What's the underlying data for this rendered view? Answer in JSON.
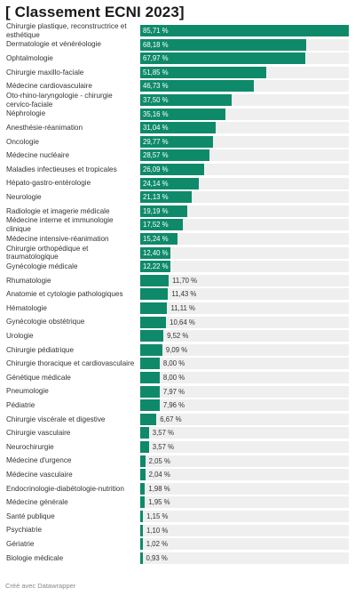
{
  "header": {
    "title": "[ Classement ECNI 2023]"
  },
  "footer": {
    "credit": "Créé avec Datawrapper"
  },
  "colors": {
    "bar": "#0e8a6a",
    "track": "#efefef"
  },
  "chart_data": {
    "type": "bar",
    "orientation": "horizontal",
    "title": "[ Classement ECNI 2023]",
    "xlim": [
      0,
      85.71
    ],
    "grid": false,
    "categories": [
      "Chirurgie plastique, reconstructrice et esthétique",
      "Dermatologie et vénéréologie",
      "Ophtalmologie",
      "Chirurgie maxillo-faciale",
      "Médecine cardiovasculaire",
      "Oto-rhino-laryngologie - chirurgie cervico-faciale",
      "Néphrologie",
      "Anesthésie-réanimation",
      "Oncologie",
      "Médecine nucléaire",
      "Maladies infectieuses et tropicales",
      "Hépato-gastro-entérologie",
      "Neurologie",
      "Radiologie et imagerie médicale",
      "Médecine interne et immunologie clinique",
      "Médecine intensive-réanimation",
      "Chirurgie orthopédique et traumatologique",
      "Gynécologie médicale",
      "Rhumatologie",
      "Anatomie et cytologie pathologiques",
      "Hématologie",
      "Gynécologie obstétrique",
      "Urologie",
      "Chirurgie pédiatrique",
      "Chirurgie thoracique et cardiovasculaire",
      "Génétique médicale",
      "Pneumologie",
      "Pédiatrie",
      "Chirurgie viscérale et digestive",
      "Chirurgie vasculaire",
      "Neurochirurgie",
      "Médecine d'urgence",
      "Médecine vasculaire",
      "Endocrinologie-diabétologie-nutrition",
      "Médecine générale",
      "Santé publique",
      "Psychiatrie",
      "Gériatrie",
      "Biologie médicale"
    ],
    "values": [
      85.71,
      68.18,
      67.97,
      51.85,
      46.73,
      37.5,
      35.16,
      31.04,
      29.77,
      28.57,
      26.09,
      24.14,
      21.13,
      19.19,
      17.52,
      15.24,
      12.4,
      12.22,
      11.7,
      11.43,
      11.11,
      10.64,
      9.52,
      9.09,
      8.0,
      8.0,
      7.97,
      7.96,
      6.67,
      3.57,
      3.57,
      2.05,
      2.04,
      1.98,
      1.95,
      1.15,
      1.1,
      1.02,
      0.93
    ],
    "value_labels": [
      "85,71 %",
      "68,18 %",
      "67,97 %",
      "51,85 %",
      "46,73 %",
      "37,50 %",
      "35,16 %",
      "31,04 %",
      "29,77 %",
      "28,57 %",
      "26,09 %",
      "24,14 %",
      "21,13 %",
      "19,19 %",
      "17,52 %",
      "15,24 %",
      "12,40 %",
      "12,22 %",
      "11,70 %",
      "11,43 %",
      "11,11 %",
      "10,64 %",
      "9,52 %",
      "9,09 %",
      "8,00 %",
      "8,00 %",
      "7,97 %",
      "7,96 %",
      "6,67 %",
      "3,57 %",
      "3,57 %",
      "2,05 %",
      "2,04 %",
      "1,98 %",
      "1,95 %",
      "1,15 %",
      "1,10 %",
      "1,02 %",
      "0,93 %"
    ]
  }
}
